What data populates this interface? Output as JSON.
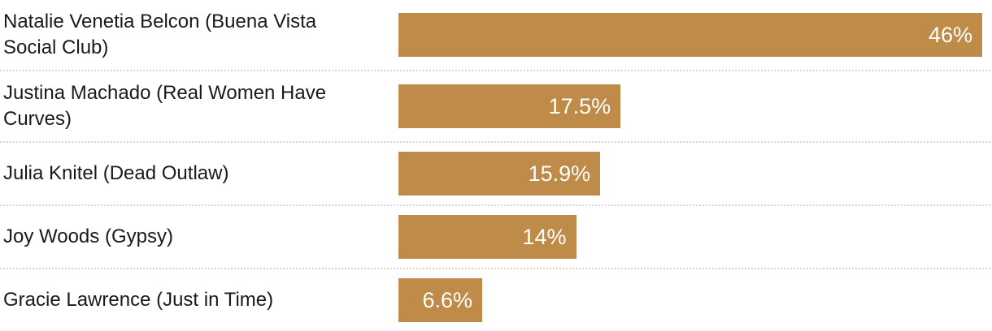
{
  "chart_data": {
    "type": "bar",
    "orientation": "horizontal",
    "title": "",
    "xlabel": "",
    "ylabel": "",
    "categories": [
      "Natalie Venetia Belcon (Buena Vista Social Club)",
      "Justina Machado (Real Women Have Curves)",
      "Julia Knitel (Dead Outlaw)",
      "Joy Woods (Gypsy)",
      "Gracie Lawrence (Just in Time)"
    ],
    "values": [
      46,
      17.5,
      15.9,
      14,
      6.6
    ],
    "value_labels": [
      "46%",
      "17.5%",
      "15.9%",
      "14%",
      "6.6%"
    ],
    "xlim": [
      0,
      46
    ],
    "grid": false,
    "legend": false,
    "bar_color": "#BF8B48",
    "value_label_color": "#ffffff",
    "category_label_color": "#1a1a1a",
    "separator_color": "#d6d6d6",
    "background_color": "#ffffff"
  }
}
